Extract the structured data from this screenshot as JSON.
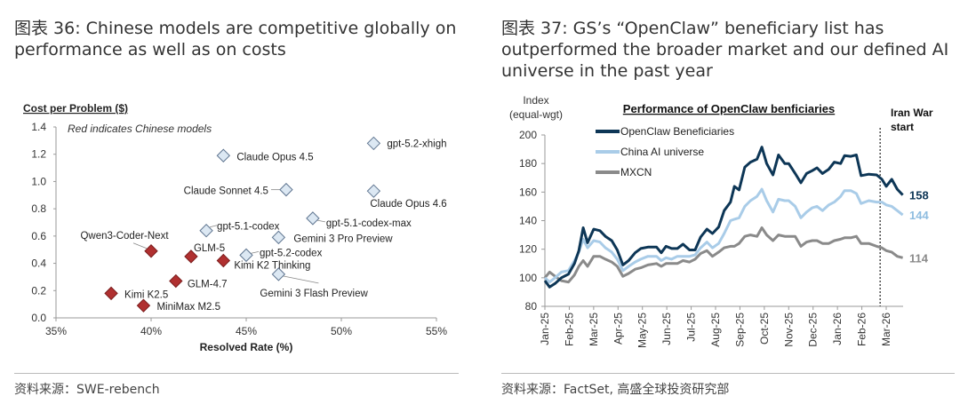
{
  "left": {
    "title": "图表 36: Chinese models are competitive globally on performance as well as on costs",
    "source": "资料来源：SWE-rebench"
  },
  "right": {
    "title": "图表 37: GS’s “OpenClaw” beneficiary list has outperformed the broader market and our defined AI universe in the past year",
    "source": "资料来源：FactSet, 高盛全球投资研究部"
  },
  "chart_data": [
    {
      "type": "scatter",
      "ylabel": "Cost per Problem ($)",
      "xlabel": "Resolved Rate (%)",
      "annotation": "Red indicates Chinese models",
      "xlim": [
        35,
        55
      ],
      "ylim": [
        0,
        1.4
      ],
      "x_ticks": [
        "35%",
        "40%",
        "45%",
        "50%",
        "55%"
      ],
      "y_ticks": [
        "0.0",
        "0.2",
        "0.4",
        "0.6",
        "0.8",
        "1.0",
        "1.2",
        "1.4"
      ],
      "colors": {
        "chinese": "#b03030",
        "other": "#dce8f3"
      },
      "points": [
        {
          "label": "gpt-5.2-xhigh",
          "x": 51.7,
          "y": 1.28,
          "chinese": false
        },
        {
          "label": "Claude Opus 4.5",
          "x": 43.8,
          "y": 1.19,
          "chinese": false
        },
        {
          "label": "Claude Sonnet 4.5",
          "x": 47.1,
          "y": 0.94,
          "chinese": false
        },
        {
          "label": "Claude Opus 4.6",
          "x": 51.7,
          "y": 0.93,
          "chinese": false
        },
        {
          "label": "gpt-5.1-codex-max",
          "x": 48.5,
          "y": 0.73,
          "chinese": false
        },
        {
          "label": "gpt-5.1-codex",
          "x": 42.9,
          "y": 0.64,
          "chinese": false
        },
        {
          "label": "Gemini 3 Pro Preview",
          "x": 46.7,
          "y": 0.59,
          "chinese": false
        },
        {
          "label": "gpt-5.2-codex",
          "x": 45.0,
          "y": 0.46,
          "chinese": false
        },
        {
          "label": "Gemini 3 Flash Preview",
          "x": 46.7,
          "y": 0.32,
          "chinese": false
        },
        {
          "label": "Qwen3-Coder-Next",
          "x": 40.0,
          "y": 0.49,
          "chinese": true
        },
        {
          "label": "GLM-5",
          "x": 42.1,
          "y": 0.45,
          "chinese": true
        },
        {
          "label": "Kimi K2 Thinking",
          "x": 43.8,
          "y": 0.42,
          "chinese": true
        },
        {
          "label": "GLM-4.7",
          "x": 41.3,
          "y": 0.27,
          "chinese": true
        },
        {
          "label": "Kimi K2.5",
          "x": 37.9,
          "y": 0.18,
          "chinese": true
        },
        {
          "label": "MiniMax M2.5",
          "x": 39.6,
          "y": 0.09,
          "chinese": true
        }
      ]
    },
    {
      "type": "line",
      "title": "Performance of OpenClaw benficiaries",
      "ylabel": "Index (equal-wgt)",
      "ylim": [
        80,
        200
      ],
      "y_ticks": [
        "80",
        "100",
        "120",
        "140",
        "160",
        "180",
        "200"
      ],
      "x_ticks": [
        "Jan-25",
        "Feb-25",
        "Mar-25",
        "Apr-25",
        "May-25",
        "Jun-25",
        "Jul-25",
        "Aug-25",
        "Sep-25",
        "Oct-25",
        "Nov-25",
        "Dec-25",
        "Jan-26",
        "Feb-26",
        "Mar-26"
      ],
      "legend": "top-left",
      "event": {
        "label_line1": "Iran War",
        "label_line2": "start",
        "date": "2026-02-22"
      },
      "x": [
        "2025-01-01",
        "2025-01-07",
        "2025-01-14",
        "2025-01-22",
        "2025-01-31",
        "2025-02-07",
        "2025-02-12",
        "2025-02-17",
        "2025-02-22",
        "2025-03-01",
        "2025-03-09",
        "2025-03-16",
        "2025-03-24",
        "2025-03-31",
        "2025-04-07",
        "2025-04-14",
        "2025-04-22",
        "2025-04-29",
        "2025-05-08",
        "2025-05-19",
        "2025-05-25",
        "2025-05-31",
        "2025-06-07",
        "2025-06-14",
        "2025-06-21",
        "2025-06-29",
        "2025-07-06",
        "2025-07-13",
        "2025-07-21",
        "2025-07-28",
        "2025-08-05",
        "2025-08-12",
        "2025-08-20",
        "2025-08-25",
        "2025-08-31",
        "2025-09-07",
        "2025-09-14",
        "2025-09-22",
        "2025-09-28",
        "2025-10-04",
        "2025-10-12",
        "2025-10-19",
        "2025-10-27",
        "2025-11-01",
        "2025-11-09",
        "2025-11-16",
        "2025-11-23",
        "2025-11-30",
        "2025-12-06",
        "2025-12-13",
        "2025-12-21",
        "2025-12-28",
        "2026-01-05",
        "2026-01-10",
        "2026-01-18",
        "2026-01-25",
        "2026-01-31",
        "2026-02-09",
        "2026-02-18",
        "2026-02-24",
        "2026-03-01",
        "2026-03-08",
        "2026-03-15",
        "2026-03-22"
      ],
      "series": [
        {
          "name": "OpenClaw Beneficiaries",
          "color": "#0d3656",
          "end_label": "158",
          "values": [
            98,
            93.5,
            96,
            100,
            102.5,
            110,
            119,
            135,
            124.5,
            134,
            133,
            129,
            126,
            119.5,
            109,
            112,
            117.5,
            120.5,
            121.5,
            121.5,
            117.5,
            122,
            120.5,
            120.5,
            123.5,
            119.5,
            119.5,
            128.5,
            134,
            131,
            135.5,
            147,
            153,
            164,
            161.5,
            177.5,
            181,
            183,
            191.5,
            180,
            172,
            186,
            180,
            180,
            173,
            166.5,
            173,
            175,
            177,
            173,
            176,
            181,
            180,
            185.5,
            185,
            186,
            171.5,
            172.5,
            172,
            169,
            164,
            169,
            162,
            158
          ]
        },
        {
          "name": "China AI universe",
          "color": "#a9cce8",
          "end_label": "144",
          "values": [
            100,
            97,
            100,
            104,
            105,
            112,
            118,
            127,
            121,
            126,
            125,
            121,
            118,
            113,
            105,
            108,
            111,
            113,
            115,
            115,
            112,
            114,
            113,
            115,
            115,
            115,
            116,
            121,
            125,
            121,
            124,
            131,
            140,
            141,
            142,
            150,
            154,
            157,
            162,
            154,
            146,
            155,
            154,
            154,
            150,
            142,
            146,
            149,
            150,
            147,
            151,
            153,
            157,
            161,
            161,
            159,
            152,
            154,
            153,
            153,
            151,
            150,
            147,
            144
          ]
        },
        {
          "name": "MXCN",
          "color": "#8a8a8a",
          "end_label": "114",
          "values": [
            100,
            104,
            101,
            98,
            97,
            102,
            108,
            112,
            108,
            115,
            115,
            113,
            111,
            108,
            101,
            103,
            106,
            107,
            109,
            110,
            108,
            110,
            110,
            110,
            112,
            111,
            113,
            117,
            119,
            115,
            118,
            121,
            122,
            122,
            124,
            129,
            130,
            129,
            135,
            130,
            126,
            130,
            129,
            129,
            129,
            122,
            125,
            126,
            126,
            124,
            124,
            126,
            127,
            128,
            128,
            129,
            124,
            124,
            122,
            121,
            119,
            118,
            115,
            114
          ]
        }
      ]
    }
  ]
}
